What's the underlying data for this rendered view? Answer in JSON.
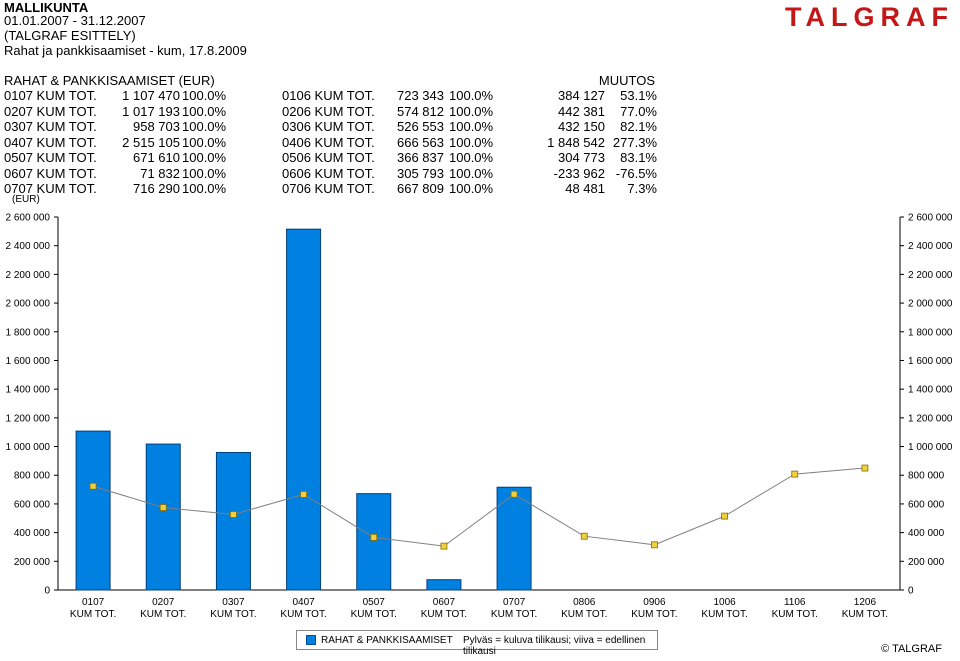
{
  "header": {
    "company": "MALLIKUNTA",
    "period": "01.01.2007 - 31.12.2007",
    "subtitle": "(TALGRAF ESITTELY)",
    "report": "Rahat ja pankkisaamiset - kum, 17.8.2009"
  },
  "logo": "TALGRAF",
  "table": {
    "title": "RAHAT & PANKKISAAMISET (EUR)",
    "muutos_label": "MUUTOS",
    "rows": [
      {
        "cur_label": "0107 KUM TOT.",
        "cur_value": "1 107 470",
        "cur_pct": "100.0%",
        "prev_label": "0106 KUM TOT.",
        "prev_value": "723 343",
        "prev_pct": "100.0%",
        "change": "384 127",
        "change_pct": "53.1%"
      },
      {
        "cur_label": "0207 KUM TOT.",
        "cur_value": "1 017 193",
        "cur_pct": "100.0%",
        "prev_label": "0206 KUM TOT.",
        "prev_value": "574 812",
        "prev_pct": "100.0%",
        "change": "442 381",
        "change_pct": "77.0%"
      },
      {
        "cur_label": "0307 KUM TOT.",
        "cur_value": "958 703",
        "cur_pct": "100.0%",
        "prev_label": "0306 KUM TOT.",
        "prev_value": "526 553",
        "prev_pct": "100.0%",
        "change": "432 150",
        "change_pct": "82.1%"
      },
      {
        "cur_label": "0407 KUM TOT.",
        "cur_value": "2 515 105",
        "cur_pct": "100.0%",
        "prev_label": "0406 KUM TOT.",
        "prev_value": "666 563",
        "prev_pct": "100.0%",
        "change": "1 848 542",
        "change_pct": "277.3%"
      },
      {
        "cur_label": "0507 KUM TOT.",
        "cur_value": "671 610",
        "cur_pct": "100.0%",
        "prev_label": "0506 KUM TOT.",
        "prev_value": "366 837",
        "prev_pct": "100.0%",
        "change": "304 773",
        "change_pct": "83.1%"
      },
      {
        "cur_label": "0607 KUM TOT.",
        "cur_value": "71 832",
        "cur_pct": "100.0%",
        "prev_label": "0606 KUM TOT.",
        "prev_value": "305 793",
        "prev_pct": "100.0%",
        "change": "-233 962",
        "change_pct": "-76.5%"
      },
      {
        "cur_label": "0707 KUM TOT.",
        "cur_value": "716 290",
        "cur_pct": "100.0%",
        "prev_label": "0706 KUM TOT.",
        "prev_value": "667 809",
        "prev_pct": "100.0%",
        "change": "48 481",
        "change_pct": "7.3%"
      }
    ]
  },
  "chart_data": {
    "type": "bar",
    "ylabel": "(EUR)",
    "ylim": [
      0,
      2600000
    ],
    "yticks": [
      0,
      200000,
      400000,
      600000,
      800000,
      1000000,
      1200000,
      1400000,
      1600000,
      1800000,
      2000000,
      2200000,
      2400000,
      2600000
    ],
    "ytick_labels": [
      "0",
      "200 000",
      "400 000",
      "600 000",
      "800 000",
      "1 000 000",
      "1 200 000",
      "1 400 000",
      "1 600 000",
      "1 800 000",
      "2 000 000",
      "2 200 000",
      "2 400 000",
      "2 600 000"
    ],
    "categories": [
      {
        "line1": "0107",
        "line2": "KUM TOT."
      },
      {
        "line1": "0207",
        "line2": "KUM TOT."
      },
      {
        "line1": "0307",
        "line2": "KUM TOT."
      },
      {
        "line1": "0407",
        "line2": "KUM TOT."
      },
      {
        "line1": "0507",
        "line2": "KUM TOT."
      },
      {
        "line1": "0607",
        "line2": "KUM TOT."
      },
      {
        "line1": "0707",
        "line2": "KUM TOT."
      },
      {
        "line1": "0806",
        "line2": "KUM TOT."
      },
      {
        "line1": "0906",
        "line2": "KUM TOT."
      },
      {
        "line1": "1006",
        "line2": "KUM TOT."
      },
      {
        "line1": "1106",
        "line2": "KUM TOT."
      },
      {
        "line1": "1206",
        "line2": "KUM TOT."
      }
    ],
    "series": [
      {
        "values": [
          1107470,
          1017193,
          958703,
          2515105,
          671610,
          71832,
          716290,
          null,
          null,
          null,
          null,
          null
        ],
        "color": "#0080e0"
      },
      {
        "values": [
          723343,
          574812,
          526553,
          666563,
          366837,
          305793,
          667809,
          375000,
          315000,
          515000,
          808000,
          850000
        ],
        "color": "#808080",
        "marker_color": "#f0d040"
      }
    ],
    "legend": {
      "series_name": "RAHAT & PANKKISAAMISET",
      "note": "Pylväs = kuluva tilikausi; viiva = edellinen tilikausi",
      "placement": "bottom"
    },
    "grid": false
  },
  "copyright": "© TALGRAF"
}
